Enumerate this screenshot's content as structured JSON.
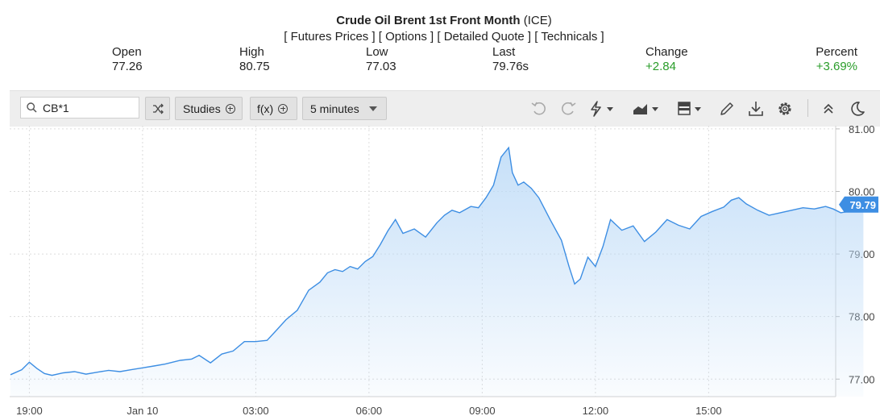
{
  "header": {
    "title_bold": "Crude Oil Brent 1st Front Month",
    "title_exchange": "(ICE)",
    "links": [
      "Futures Prices",
      "Options",
      "Detailed Quote",
      "Technicals"
    ]
  },
  "quote": {
    "open_label": "Open",
    "open": "77.26",
    "high_label": "High",
    "high": "80.75",
    "low_label": "Low",
    "low": "77.03",
    "last_label": "Last",
    "last": "79.76s",
    "change_label": "Change",
    "change": "+2.84",
    "percent_label": "Percent",
    "percent": "+3.69%",
    "positive_color": "#2a9d2a"
  },
  "toolbar": {
    "symbol_value": "CB*1",
    "studies_label": "Studies",
    "fx_label": "f(x)",
    "interval_label": "5 minutes",
    "icons": [
      "search-icon",
      "shuffle-icon",
      "plus-circle-icon",
      "chevron-down-icon",
      "undo-icon",
      "redo-icon",
      "lightning-icon",
      "area-chart-icon",
      "layout-icon",
      "pencil-icon",
      "download-icon",
      "gear-icon",
      "collapse-icon",
      "dark-mode-icon"
    ]
  },
  "chart_data": {
    "type": "area",
    "x_ticks": [
      "19:00",
      "Jan 10",
      "03:00",
      "06:00",
      "09:00",
      "12:00",
      "15:00"
    ],
    "y_ticks": [
      "77.00",
      "78.00",
      "79.00",
      "80.00",
      "81.00"
    ],
    "ylim": [
      76.72,
      81.05
    ],
    "grid": true,
    "last_price_label": "79.79",
    "line_color": "#3d8ee3",
    "fill_color": "#bcdaf7",
    "x_unit": "hours since 18:30",
    "x": [
      0,
      0.3,
      0.5,
      0.7,
      0.9,
      1.1,
      1.4,
      1.7,
      2.0,
      2.3,
      2.6,
      2.9,
      3.2,
      3.5,
      3.8,
      4.1,
      4.5,
      4.8,
      5.0,
      5.3,
      5.6,
      5.9,
      6.2,
      6.5,
      6.8,
      7.0,
      7.3,
      7.6,
      7.9,
      8.2,
      8.4,
      8.6,
      8.8,
      9.0,
      9.2,
      9.4,
      9.6,
      9.8,
      10.0,
      10.2,
      10.4,
      10.7,
      11.0,
      11.3,
      11.5,
      11.7,
      11.9,
      12.2,
      12.4,
      12.6,
      12.8,
      13.0,
      13.2,
      13.3,
      13.45,
      13.6,
      13.8,
      14.0,
      14.3,
      14.6,
      14.8,
      14.95,
      15.1,
      15.3,
      15.5,
      15.7,
      15.9,
      16.2,
      16.5,
      16.8,
      17.1,
      17.4,
      17.7,
      18.0,
      18.3,
      18.6,
      18.9,
      19.1,
      19.3,
      19.5,
      19.8,
      20.1,
      20.4,
      20.7,
      21.0,
      21.3,
      21.6,
      21.8,
      22.0,
      22.2,
      22.4,
      22.6
    ],
    "y": [
      77.07,
      77.15,
      77.27,
      77.17,
      77.09,
      77.06,
      77.1,
      77.12,
      77.08,
      77.11,
      77.14,
      77.12,
      77.15,
      77.18,
      77.21,
      77.24,
      77.3,
      77.32,
      77.38,
      77.26,
      77.4,
      77.45,
      77.6,
      77.6,
      77.62,
      77.75,
      77.95,
      78.1,
      78.42,
      78.55,
      78.7,
      78.75,
      78.72,
      78.8,
      78.76,
      78.88,
      78.96,
      79.15,
      79.37,
      79.55,
      79.33,
      79.4,
      79.27,
      79.5,
      79.62,
      79.7,
      79.66,
      79.76,
      79.74,
      79.9,
      80.1,
      80.55,
      80.7,
      80.3,
      80.1,
      80.15,
      80.05,
      79.9,
      79.55,
      79.22,
      78.8,
      78.52,
      78.6,
      78.95,
      78.8,
      79.12,
      79.55,
      79.38,
      79.45,
      79.2,
      79.35,
      79.55,
      79.46,
      79.4,
      79.6,
      79.68,
      79.75,
      79.86,
      79.9,
      79.8,
      79.7,
      79.62,
      79.66,
      79.7,
      79.74,
      79.72,
      79.76,
      79.72,
      79.66,
      79.68,
      79.72,
      79.79
    ]
  }
}
